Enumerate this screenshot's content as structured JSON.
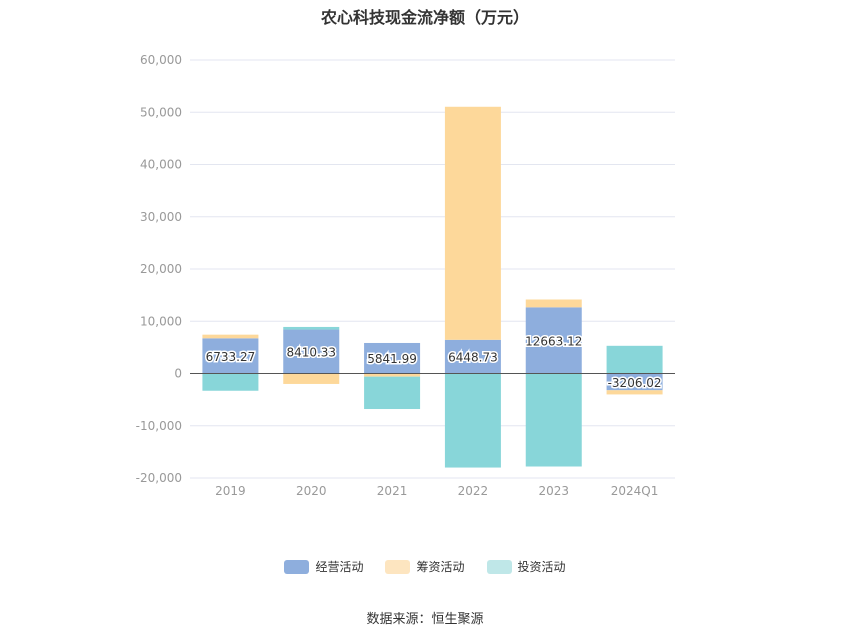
{
  "chart_data": {
    "type": "bar",
    "stacked": true,
    "title": "农心科技现金流净额（万元）",
    "categories": [
      "2019",
      "2020",
      "2021",
      "2022",
      "2023",
      "2024Q1"
    ],
    "ylim": [
      -20000,
      60000
    ],
    "yticks": [
      60000,
      50000,
      40000,
      30000,
      20000,
      10000,
      0,
      -10000,
      -20000
    ],
    "ytick_labels": [
      "60,000",
      "50,000",
      "40,000",
      "30,000",
      "20,000",
      "10,000",
      "0",
      "-10,000",
      "-20,000"
    ],
    "grid": true,
    "legend_position": "bottom",
    "series": [
      {
        "name": "经营活动",
        "color": "#8eaedd",
        "values": [
          6733.27,
          8410.33,
          5841.99,
          6448.73,
          12663.12,
          -3206.02
        ],
        "data_labels": [
          "6733.27",
          "8410.33",
          "5841.99",
          "6448.73",
          "12663.12",
          "-3206.02"
        ]
      },
      {
        "name": "筹资活动",
        "color": "#fdd89a",
        "values": [
          700,
          -2000,
          -600,
          44600,
          1500,
          -800
        ]
      },
      {
        "name": "投资活动",
        "color": "#88d6d9",
        "values": [
          -3300,
          500,
          -6200,
          -18000,
          -17800,
          5300
        ]
      }
    ]
  },
  "legend": {
    "items": [
      {
        "label": "经营活动",
        "color": "#8eaedd"
      },
      {
        "label": "筹资活动",
        "color": "#fde5c0"
      },
      {
        "label": "投资活动",
        "color": "#bfe7e8"
      }
    ]
  },
  "source_note": "数据来源：恒生聚源"
}
